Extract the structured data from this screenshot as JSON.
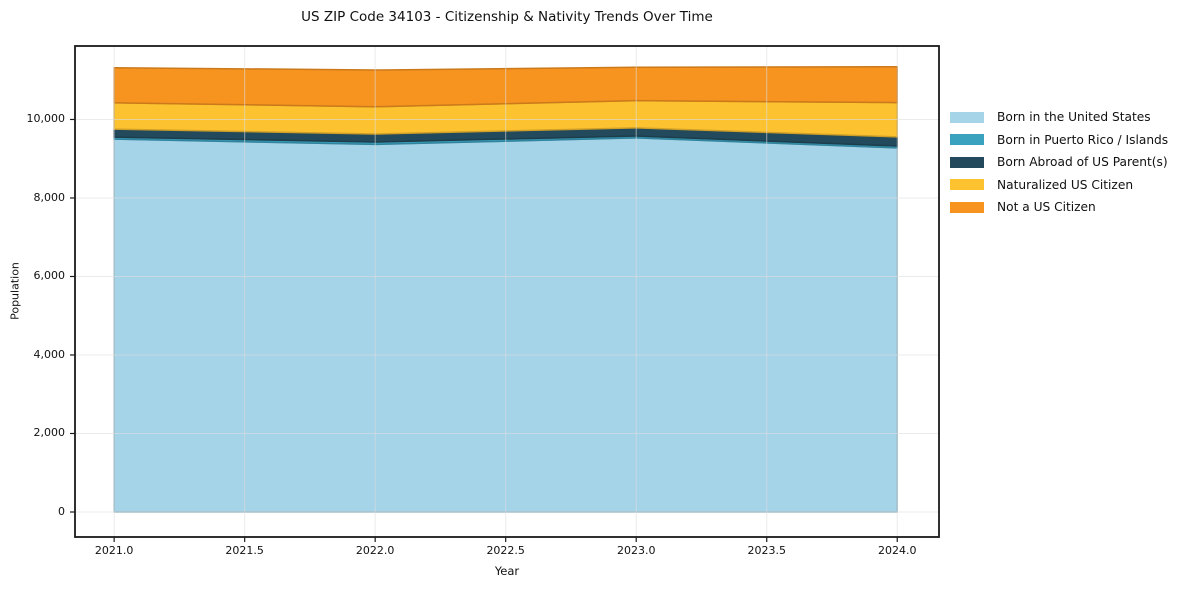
{
  "chart_data": {
    "type": "area",
    "stacked": true,
    "title": "US ZIP Code 34103 - Citizenship & Nativity Trends Over Time",
    "xlabel": "Year",
    "ylabel": "Population",
    "x": [
      2021,
      2022,
      2023,
      2024
    ],
    "series": [
      {
        "name": "Born in the United States",
        "color": "#a5d3e8",
        "values": [
          9500,
          9365,
          9530,
          9275
        ]
      },
      {
        "name": "Born in Puerto Rico / Islands",
        "color": "#3aa1bf",
        "values": [
          50,
          60,
          50,
          50
        ]
      },
      {
        "name": "Born Abroad of US Parent(s)",
        "color": "#234a5c",
        "values": [
          205,
          205,
          205,
          230
        ]
      },
      {
        "name": "Naturalized US Citizen",
        "color": "#fcc230",
        "values": [
          670,
          695,
          695,
          875
        ]
      },
      {
        "name": "Not a US Citizen",
        "color": "#f79420",
        "values": [
          895,
          935,
          850,
          915
        ]
      }
    ],
    "totals": [
      11320,
      11260,
      11330,
      11345
    ],
    "xlim": [
      2020.85,
      2024.16
    ],
    "ylim": [
      -637,
      11872
    ],
    "xticks": [
      2021.0,
      2021.5,
      2022.0,
      2022.5,
      2023.0,
      2023.5,
      2024.0
    ],
    "xtick_labels": [
      "2021.0",
      "2021.5",
      "2022.0",
      "2022.5",
      "2023.0",
      "2023.5",
      "2024.0"
    ],
    "yticks": [
      0,
      2000,
      4000,
      6000,
      8000,
      10000
    ],
    "ytick_labels": [
      "0",
      "2,000",
      "4,000",
      "6,000",
      "8,000",
      "10,000"
    ],
    "grid": true,
    "grid_color": "#dddddd",
    "spine_color": "#1a1a1a",
    "background_color": "#ffffff",
    "legend_position": "right"
  }
}
